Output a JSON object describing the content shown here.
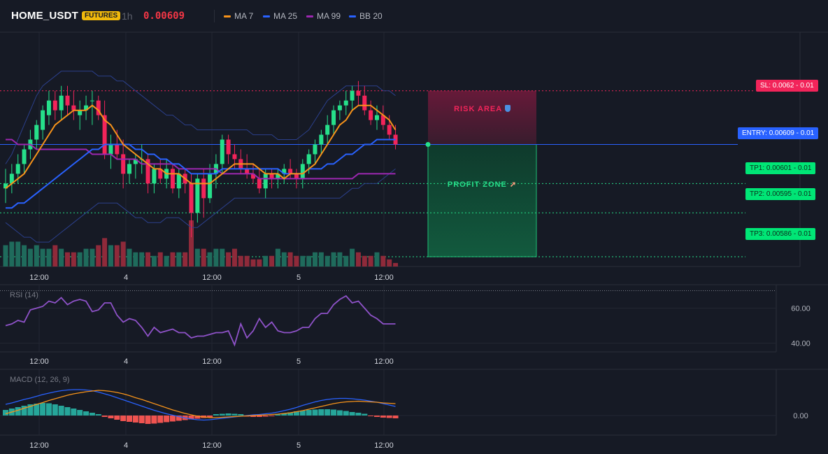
{
  "header": {
    "symbol": "HOME_USDT",
    "badge": "FUTURES",
    "timeframe": "1h",
    "price": "0.00609",
    "legend": [
      {
        "label": "MA 7",
        "color": "#f7931a"
      },
      {
        "label": "MA 25",
        "color": "#2962ff"
      },
      {
        "label": "MA 99",
        "color": "#9c27b0"
      },
      {
        "label": "BB 20",
        "color": "#2962ff"
      }
    ]
  },
  "colors": {
    "up": "#26e08a",
    "down": "#f2245a",
    "vol_up": "#1f6b5c",
    "vol_down": "#8f2a3a",
    "rsi": "#8e52c8",
    "macd": "#2962ff",
    "signal": "#f7931a",
    "hist_up": "#26a69a",
    "hist_down": "#ef5350"
  },
  "trade": {
    "sl": {
      "label": "SL: 0.0062",
      "size": "0.01",
      "price": 0.0062
    },
    "entry": {
      "label": "ENTRY: 0.00609",
      "size": "0.01",
      "price": 0.00609
    },
    "tp": [
      {
        "label": "TP1: 0.00601",
        "size": "0.01",
        "price": 0.00601
      },
      {
        "label": "TP2: 0.00595",
        "size": "0.01",
        "price": 0.00595
      },
      {
        "label": "TP3: 0.00586",
        "size": "0.01",
        "price": 0.00586
      }
    ],
    "risk_label": "RISK AREA",
    "profit_label": "PROFIT ZONE"
  },
  "chart_data": [
    {
      "type": "candlestick",
      "title": "",
      "x_ticks": [
        "12:00",
        "4",
        "12:00",
        "5",
        "12:00"
      ],
      "ylim": [
        0.00584,
        0.00632
      ],
      "candles": [
        [
          0.006,
          0.00604,
          0.00597,
          0.00601
        ],
        [
          0.00601,
          0.00605,
          0.00599,
          0.00603
        ],
        [
          0.00603,
          0.00607,
          0.00601,
          0.00605
        ],
        [
          0.00605,
          0.00609,
          0.00603,
          0.00608
        ],
        [
          0.00608,
          0.00612,
          0.00606,
          0.0061
        ],
        [
          0.0061,
          0.00614,
          0.00608,
          0.00613
        ],
        [
          0.00612,
          0.00617,
          0.0061,
          0.00616
        ],
        [
          0.00615,
          0.0062,
          0.00613,
          0.00618
        ],
        [
          0.00618,
          0.0062,
          0.00614,
          0.00616
        ],
        [
          0.00616,
          0.00621,
          0.00614,
          0.00619
        ],
        [
          0.00619,
          0.00621,
          0.00615,
          0.00617
        ],
        [
          0.00617,
          0.0062,
          0.00614,
          0.00616
        ],
        [
          0.00615,
          0.00618,
          0.00612,
          0.00616
        ],
        [
          0.00616,
          0.00619,
          0.00614,
          0.00617
        ],
        [
          0.00618,
          0.0062,
          0.00613,
          0.00618
        ],
        [
          0.00618,
          0.00619,
          0.00614,
          0.00615
        ],
        [
          0.00615,
          0.00618,
          0.00606,
          0.00607
        ],
        [
          0.00607,
          0.00611,
          0.00604,
          0.00609
        ],
        [
          0.00609,
          0.00612,
          0.00606,
          0.00607
        ],
        [
          0.00607,
          0.0061,
          0.006,
          0.00603
        ],
        [
          0.00603,
          0.00606,
          0.00601,
          0.00605
        ],
        [
          0.00605,
          0.00607,
          0.00602,
          0.00606
        ],
        [
          0.00606,
          0.00609,
          0.00603,
          0.00606
        ],
        [
          0.00606,
          0.00607,
          0.00599,
          0.00601
        ],
        [
          0.00601,
          0.00605,
          0.00599,
          0.00604
        ],
        [
          0.00604,
          0.00606,
          0.00601,
          0.00602
        ],
        [
          0.00602,
          0.00606,
          0.006,
          0.00604
        ],
        [
          0.00604,
          0.00605,
          0.00599,
          0.006
        ],
        [
          0.006,
          0.00604,
          0.00598,
          0.00603
        ],
        [
          0.00603,
          0.00604,
          0.00599,
          0.00601
        ],
        [
          0.00601,
          0.00603,
          0.0059,
          0.00595
        ],
        [
          0.00595,
          0.00603,
          0.00593,
          0.00602
        ],
        [
          0.00602,
          0.00604,
          0.00594,
          0.00598
        ],
        [
          0.00598,
          0.00605,
          0.00597,
          0.00603
        ],
        [
          0.00603,
          0.00607,
          0.006,
          0.00605
        ],
        [
          0.00605,
          0.00611,
          0.00603,
          0.0061
        ],
        [
          0.0061,
          0.00611,
          0.00605,
          0.00607
        ],
        [
          0.00607,
          0.00609,
          0.00604,
          0.00606
        ],
        [
          0.00606,
          0.00608,
          0.00603,
          0.00604
        ],
        [
          0.00604,
          0.00607,
          0.00602,
          0.00603
        ],
        [
          0.00603,
          0.00605,
          0.00601,
          0.00602
        ],
        [
          0.00602,
          0.00604,
          0.00599,
          0.006
        ],
        [
          0.006,
          0.00604,
          0.00598,
          0.00603
        ],
        [
          0.00603,
          0.00604,
          0.006,
          0.00602
        ],
        [
          0.00602,
          0.00604,
          0.006,
          0.00603
        ],
        [
          0.00603,
          0.00605,
          0.00601,
          0.00604
        ],
        [
          0.00604,
          0.00606,
          0.00602,
          0.00603
        ],
        [
          0.00603,
          0.00604,
          0.006,
          0.00602
        ],
        [
          0.00602,
          0.00606,
          0.006,
          0.00605
        ],
        [
          0.00605,
          0.00608,
          0.00603,
          0.00607
        ],
        [
          0.00607,
          0.0061,
          0.00605,
          0.00609
        ],
        [
          0.00609,
          0.00612,
          0.00607,
          0.00611
        ],
        [
          0.00611,
          0.00615,
          0.00609,
          0.00613
        ],
        [
          0.00613,
          0.00617,
          0.00611,
          0.00616
        ],
        [
          0.00616,
          0.00618,
          0.00614,
          0.00617
        ],
        [
          0.00617,
          0.0062,
          0.00615,
          0.00618
        ],
        [
          0.00618,
          0.00621,
          0.00616,
          0.0062
        ],
        [
          0.0062,
          0.00622,
          0.00617,
          0.00619
        ],
        [
          0.00619,
          0.00621,
          0.00615,
          0.00616
        ],
        [
          0.00616,
          0.00618,
          0.00613,
          0.00614
        ],
        [
          0.00614,
          0.00617,
          0.00612,
          0.00615
        ],
        [
          0.00615,
          0.00617,
          0.00612,
          0.00613
        ],
        [
          0.00613,
          0.00615,
          0.0061,
          0.00611
        ],
        [
          0.00611,
          0.00613,
          0.00608,
          0.00609
        ]
      ],
      "volume": [
        6,
        7,
        7,
        6,
        5,
        6,
        5,
        5,
        6,
        5,
        4,
        4,
        4,
        5,
        5,
        6,
        8,
        6,
        6,
        7,
        5,
        4,
        4,
        4,
        3,
        4,
        3,
        4,
        4,
        4,
        13,
        5,
        5,
        4,
        5,
        5,
        4,
        5,
        3,
        3,
        2,
        2,
        3,
        3,
        5,
        4,
        4,
        3,
        3,
        3,
        4,
        4,
        3,
        4,
        4,
        3,
        5,
        4,
        3,
        3,
        4,
        3,
        2,
        1
      ],
      "ma7": [
        0.006,
        0.00601,
        0.00602,
        0.00603,
        0.00605,
        0.00607,
        0.00609,
        0.00611,
        0.00613,
        0.00614,
        0.00615,
        0.00616,
        0.00616,
        0.00616,
        0.00617,
        0.00616,
        0.00614,
        0.00613,
        0.00611,
        0.00609,
        0.00608,
        0.00607,
        0.00606,
        0.00605,
        0.00604,
        0.00604,
        0.00603,
        0.00603,
        0.00603,
        0.00602,
        0.00601,
        0.00601,
        0.00601,
        0.00601,
        0.00602,
        0.00603,
        0.00604,
        0.00605,
        0.00605,
        0.00605,
        0.00605,
        0.00604,
        0.00603,
        0.00603,
        0.00603,
        0.00602,
        0.00603,
        0.00603,
        0.00603,
        0.00604,
        0.00605,
        0.00607,
        0.00609,
        0.00611,
        0.00613,
        0.00614,
        0.00616,
        0.00617,
        0.00617,
        0.00617,
        0.00616,
        0.00615,
        0.00614,
        0.00612
      ],
      "ma25": [
        0.00596,
        0.00596,
        0.00597,
        0.00597,
        0.00598,
        0.00599,
        0.006,
        0.00601,
        0.00602,
        0.00603,
        0.00604,
        0.00605,
        0.00606,
        0.00607,
        0.00608,
        0.00608,
        0.00609,
        0.00609,
        0.00609,
        0.00609,
        0.00609,
        0.00608,
        0.00608,
        0.00607,
        0.00607,
        0.00606,
        0.00606,
        0.00605,
        0.00605,
        0.00604,
        0.00603,
        0.00603,
        0.00603,
        0.00603,
        0.00603,
        0.00604,
        0.00604,
        0.00604,
        0.00604,
        0.00604,
        0.00604,
        0.00604,
        0.00604,
        0.00604,
        0.00604,
        0.00603,
        0.00603,
        0.00603,
        0.00603,
        0.00604,
        0.00604,
        0.00604,
        0.00605,
        0.00605,
        0.00606,
        0.00607,
        0.00607,
        0.00608,
        0.00609,
        0.00609,
        0.0061,
        0.0061,
        0.0061,
        0.0061
      ],
      "ma99": [
        0.0061,
        0.0061,
        0.00609,
        0.00609,
        0.00609,
        0.00608,
        0.00608,
        0.00608,
        0.00608,
        0.00608,
        0.00608,
        0.00608,
        0.00608,
        0.00608,
        0.00607,
        0.00607,
        0.00607,
        0.00607,
        0.00606,
        0.00606,
        0.00606,
        0.00606,
        0.00605,
        0.00605,
        0.00605,
        0.00605,
        0.00605,
        0.00605,
        0.00604,
        0.00604,
        0.00604,
        0.00604,
        0.00604,
        0.00604,
        0.00604,
        0.00603,
        0.00603,
        0.00603,
        0.00603,
        0.00603,
        0.00603,
        0.00602,
        0.00602,
        0.00602,
        0.00602,
        0.00602,
        0.00602,
        0.00602,
        0.00602,
        0.00602,
        0.00602,
        0.00602,
        0.00602,
        0.00602,
        0.00602,
        0.00602,
        0.00602,
        0.00603,
        0.00603,
        0.00603,
        0.00603,
        0.00603,
        0.00603,
        0.00603
      ],
      "bb_upper": [
        0.00605,
        0.00607,
        0.0061,
        0.00613,
        0.00616,
        0.00619,
        0.00621,
        0.00622,
        0.00623,
        0.00624,
        0.00624,
        0.00624,
        0.00624,
        0.00624,
        0.00624,
        0.00623,
        0.00623,
        0.00623,
        0.00622,
        0.00622,
        0.00621,
        0.0062,
        0.00619,
        0.00618,
        0.00617,
        0.00616,
        0.00615,
        0.00615,
        0.00614,
        0.00613,
        0.00613,
        0.00612,
        0.00612,
        0.00612,
        0.00612,
        0.00612,
        0.00612,
        0.00612,
        0.00612,
        0.00612,
        0.00611,
        0.00611,
        0.00611,
        0.00611,
        0.0061,
        0.0061,
        0.0061,
        0.0061,
        0.00611,
        0.00612,
        0.00614,
        0.00616,
        0.00618,
        0.00619,
        0.0062,
        0.00621,
        0.00621,
        0.00621,
        0.00621,
        0.00621,
        0.00621,
        0.0062,
        0.0062,
        0.00619
      ],
      "bb_lower": [
        0.00593,
        0.00592,
        0.00591,
        0.0059,
        0.0059,
        0.00589,
        0.00589,
        0.00589,
        0.0059,
        0.00591,
        0.00592,
        0.00593,
        0.00594,
        0.00595,
        0.00596,
        0.00597,
        0.00597,
        0.00597,
        0.00597,
        0.00596,
        0.00595,
        0.00594,
        0.00594,
        0.00593,
        0.00593,
        0.00593,
        0.00594,
        0.00594,
        0.00594,
        0.00593,
        0.00592,
        0.00592,
        0.00593,
        0.00594,
        0.00595,
        0.00596,
        0.00597,
        0.00598,
        0.00598,
        0.00598,
        0.00598,
        0.00598,
        0.00598,
        0.00598,
        0.00598,
        0.00598,
        0.00598,
        0.00598,
        0.00598,
        0.00598,
        0.00598,
        0.00598,
        0.00598,
        0.00598,
        0.00598,
        0.00599,
        0.006,
        0.006,
        0.00601,
        0.00601,
        0.00601,
        0.00602,
        0.00603,
        0.00604
      ]
    },
    {
      "type": "line",
      "title": "RSI (14)",
      "x_ticks": [
        "12:00",
        "4",
        "12:00",
        "5",
        "12:00"
      ],
      "y_ticks": [
        "60.00",
        "40.00"
      ],
      "ylim": [
        35,
        73
      ],
      "series": [
        {
          "name": "RSI",
          "values": [
            50,
            51,
            53,
            52,
            59,
            60,
            61,
            64,
            63,
            66,
            62,
            64,
            65,
            64,
            58,
            59,
            63,
            63,
            56,
            52,
            54,
            53,
            49,
            44,
            49,
            46,
            47,
            48,
            46,
            46,
            43,
            44,
            44,
            45,
            46,
            46,
            47,
            39,
            51,
            43,
            47,
            54,
            49,
            52,
            47,
            46,
            46,
            47,
            49,
            49,
            54,
            57,
            57,
            62,
            65,
            67,
            63,
            64,
            60,
            56,
            54,
            51,
            51,
            51
          ]
        }
      ]
    },
    {
      "type": "bar",
      "title": "MACD (12, 26, 9)",
      "x_ticks": [
        "12:00",
        "4",
        "12:00",
        "5",
        "12:00"
      ],
      "y_ticks": [
        "0.00"
      ],
      "series": [
        {
          "name": "MACD",
          "values": [
            3.2,
            3.6,
            4.1,
            4.6,
            5.0,
            5.5,
            6.0,
            6.4,
            6.8,
            7.1,
            7.3,
            7.4,
            7.4,
            7.3,
            7.1,
            6.7,
            6.2,
            5.7,
            5.1,
            4.5,
            3.9,
            3.3,
            2.7,
            2.1,
            1.5,
            1.0,
            0.5,
            0.1,
            -0.3,
            -0.7,
            -1.0,
            -1.2,
            -1.3,
            -1.2,
            -1.0,
            -0.8,
            -0.6,
            -0.4,
            -0.2,
            0.0,
            0.2,
            0.3,
            0.5,
            0.7,
            1.0,
            1.4,
            1.8,
            2.3,
            2.9,
            3.4,
            3.9,
            4.3,
            4.6,
            4.8,
            4.9,
            4.9,
            4.8,
            4.6,
            4.4,
            4.1,
            3.8,
            3.4,
            3.0,
            2.6
          ]
        },
        {
          "name": "Signal",
          "values": [
            0.5,
            1.0,
            1.5,
            2.1,
            2.6,
            3.2,
            3.7,
            4.3,
            4.8,
            5.3,
            5.8,
            6.2,
            6.5,
            6.8,
            7.0,
            7.2,
            7.1,
            6.9,
            6.6,
            6.2,
            5.7,
            5.1,
            4.6,
            4.0,
            3.4,
            2.8,
            2.2,
            1.6,
            1.1,
            0.6,
            0.2,
            -0.2,
            -0.4,
            -0.6,
            -0.6,
            -0.5,
            -0.4,
            -0.3,
            -0.2,
            -0.1,
            0.0,
            0.1,
            0.2,
            0.3,
            0.4,
            0.6,
            0.8,
            1.1,
            1.4,
            1.8,
            2.2,
            2.6,
            3.0,
            3.4,
            3.7,
            3.9,
            4.0,
            4.1,
            4.0,
            3.9,
            3.8,
            3.6,
            3.5,
            3.4
          ]
        },
        {
          "name": "Histogram",
          "values": [
            1.6,
            2.0,
            2.4,
            2.8,
            3.2,
            3.4,
            3.6,
            3.5,
            3.2,
            2.8,
            2.4,
            2.0,
            1.6,
            1.2,
            0.8,
            0.4,
            -0.4,
            -0.8,
            -1.2,
            -1.6,
            -1.8,
            -2.0,
            -2.2,
            -2.4,
            -2.3,
            -2.1,
            -1.9,
            -1.7,
            -1.5,
            -1.3,
            -1.1,
            -0.9,
            -0.7,
            -0.5,
            0.4,
            0.5,
            0.6,
            0.5,
            0.4,
            -0.3,
            -0.4,
            -0.4,
            -0.3,
            -0.2,
            0.3,
            0.6,
            0.9,
            1.2,
            1.4,
            1.6,
            1.7,
            1.8,
            1.8,
            1.7,
            1.5,
            1.3,
            1.0,
            0.8,
            0.5,
            -0.2,
            -0.4,
            -0.6,
            -0.7,
            -0.8
          ]
        }
      ]
    }
  ]
}
